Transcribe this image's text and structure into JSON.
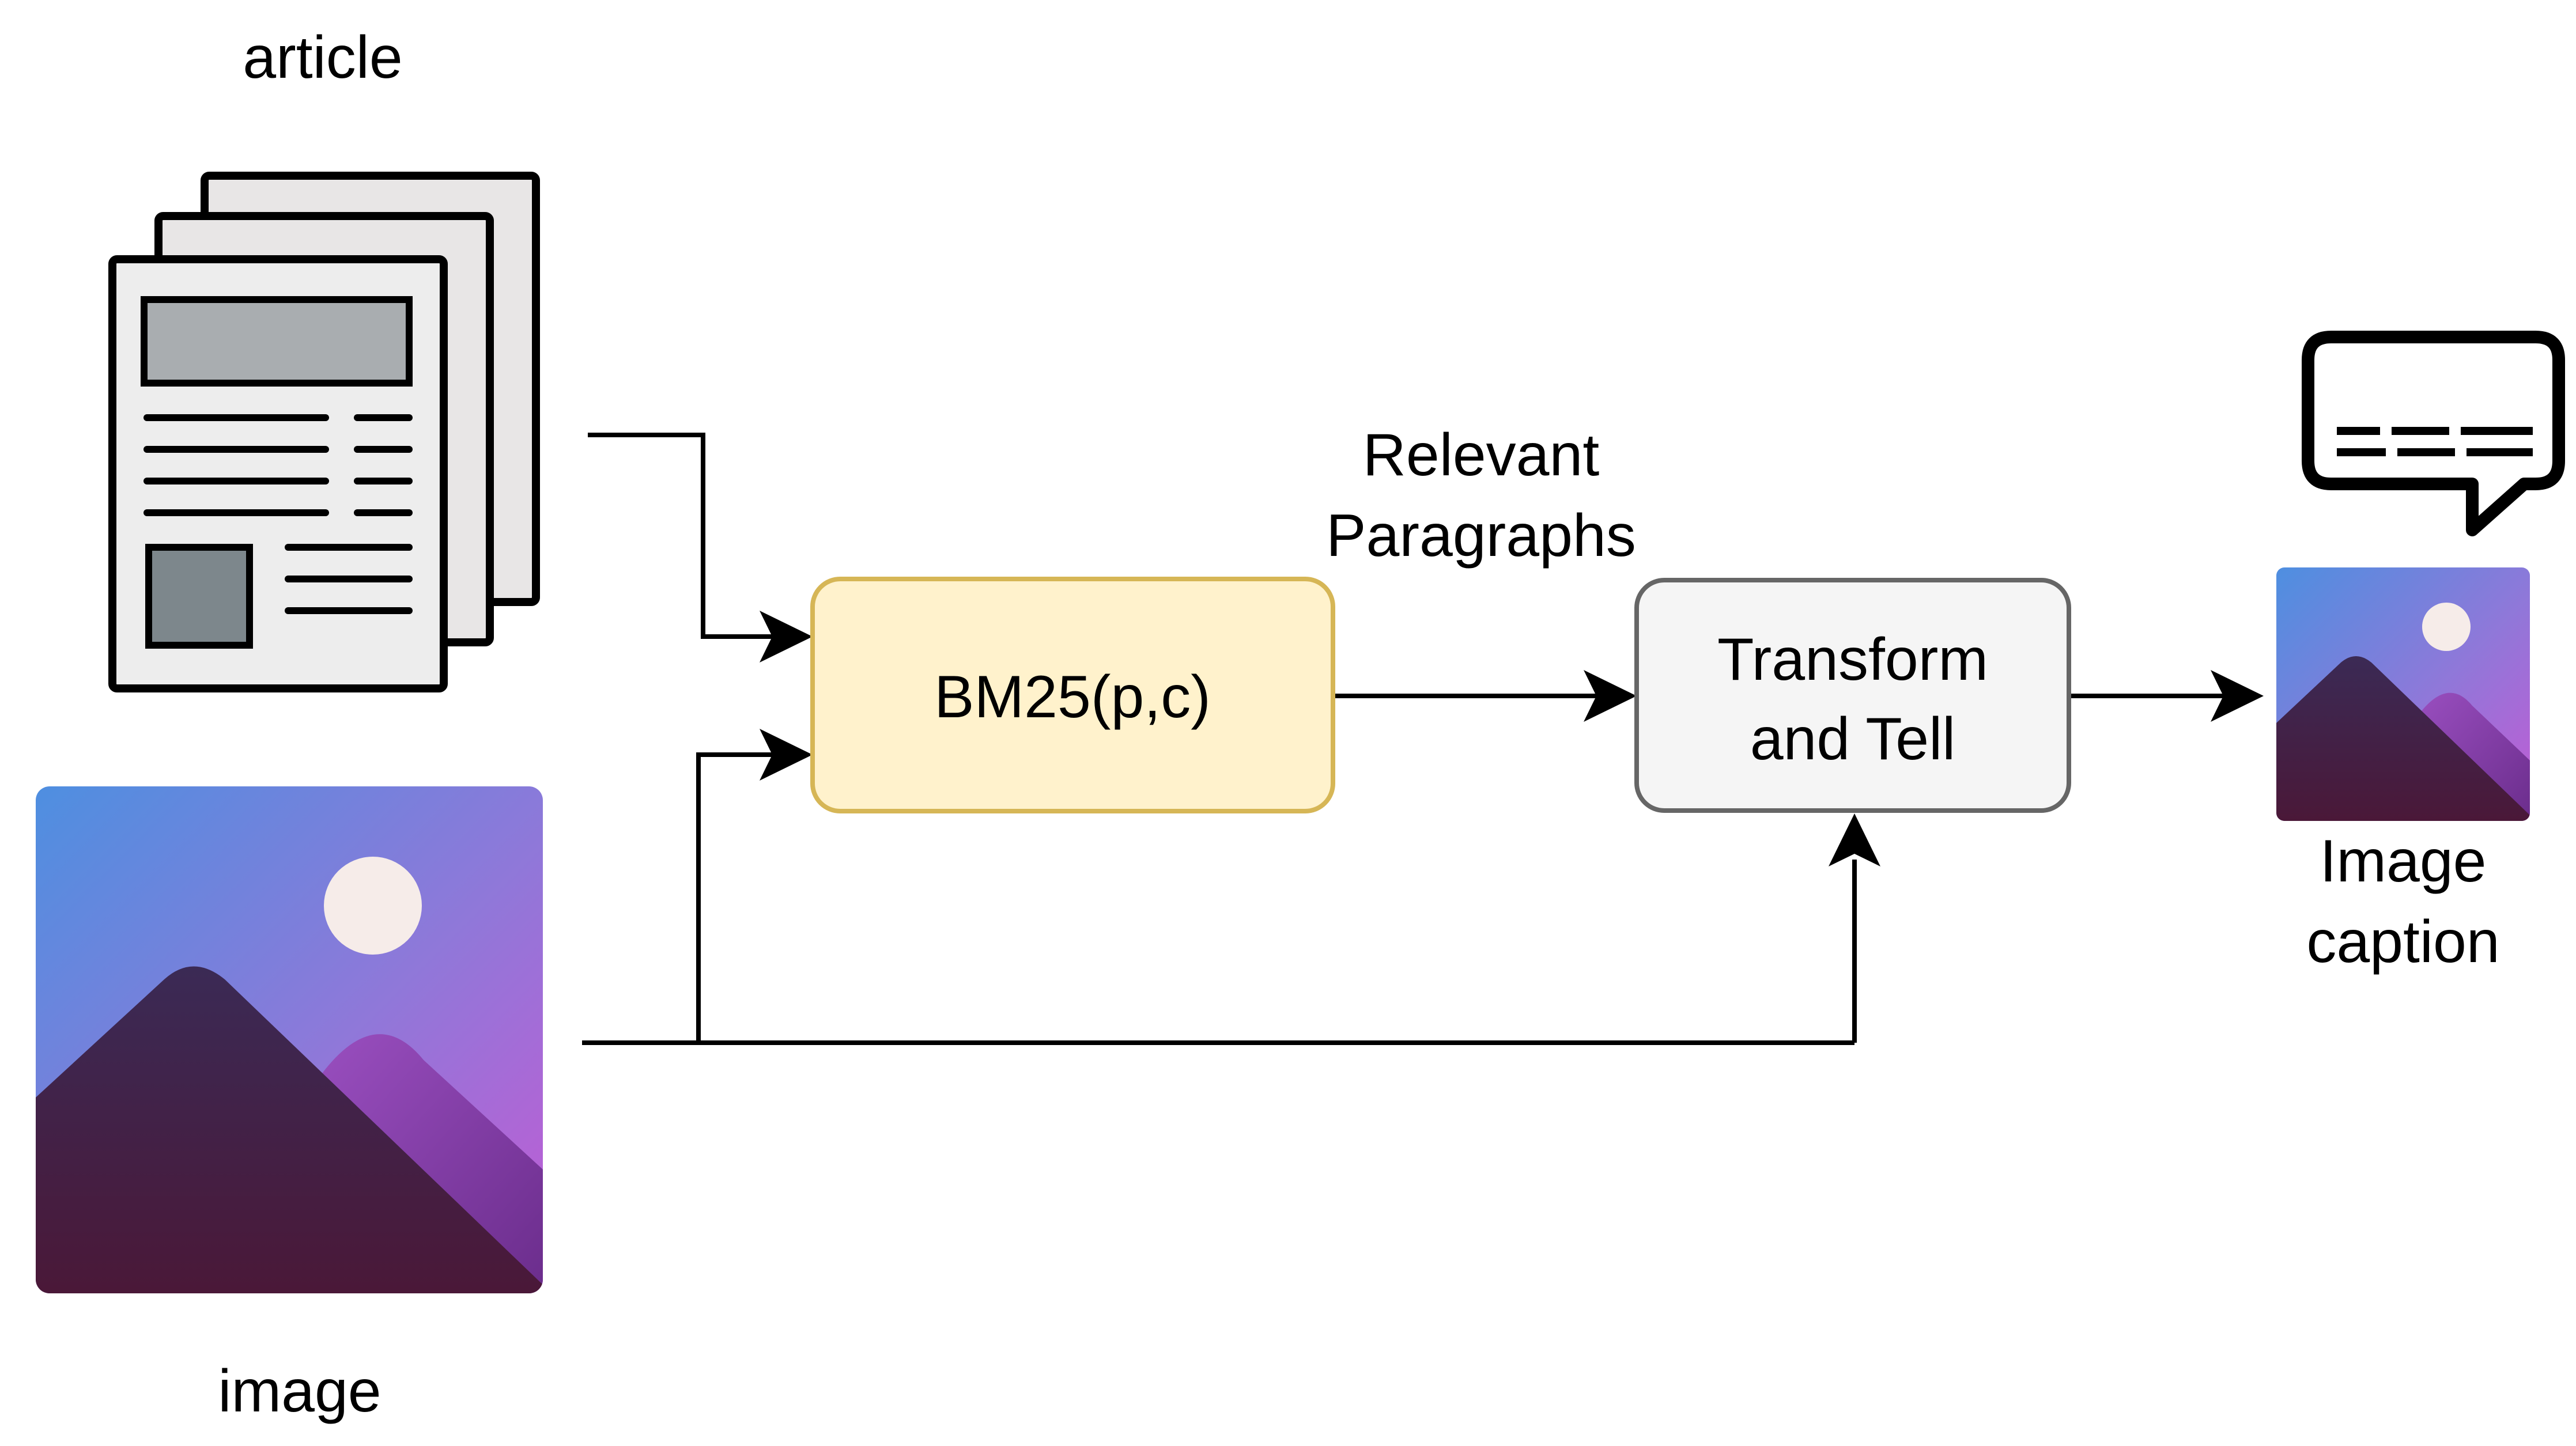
{
  "labels": {
    "article": "article",
    "image": "image",
    "relevant_line1": "Relevant",
    "relevant_line2": "Paragraphs",
    "output_line1": "Image",
    "output_line2": "caption"
  },
  "nodes": {
    "bm25": {
      "label": "BM25(p,c)",
      "fill": "#fff2cc",
      "stroke": "#d6b656"
    },
    "transform": {
      "label_line1": "Transform",
      "label_line2": "and Tell",
      "fill": "#f5f5f5",
      "stroke": "#666666",
      "text_color": "#333333"
    }
  },
  "icons": {
    "article": "newspaper-stack-icon",
    "image": "landscape-image-icon",
    "output_image": "landscape-image-icon",
    "caption": "speech-bubble-icon"
  },
  "colors": {
    "sky_top": "#5b8ddb",
    "sky_bottom": "#b45fd3",
    "mountain_dark": "#3e2452",
    "mountain_light": "#8e4bb0",
    "moon": "#f6ece9",
    "paper": "#e8e6e6",
    "paper_block": "#a9adb0",
    "paper_photo": "#7d878c",
    "line": "#000000"
  }
}
